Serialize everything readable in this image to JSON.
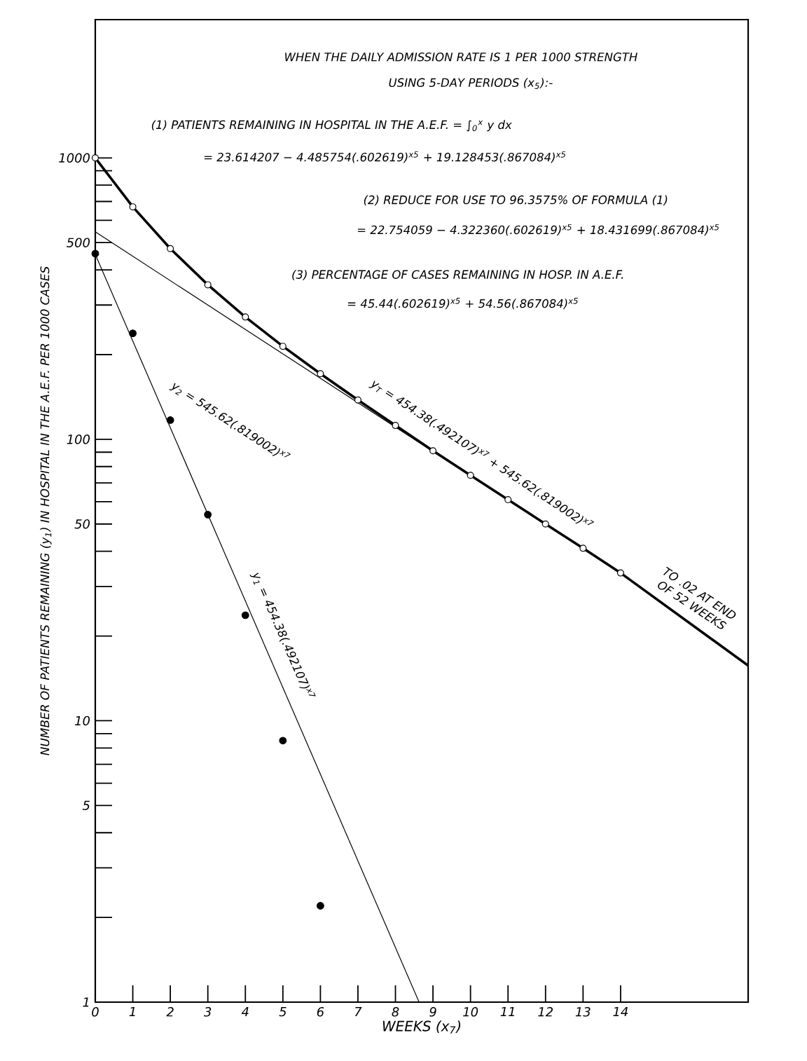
{
  "chart_data": {
    "type": "line",
    "xlabel": "WEEKS (x$_{7}$)",
    "ylabel": "NUMBER OF PATIENTS REMAINING (y$_{1}$) IN HOSPITAL IN THE A.E.F. PER 1000 CASES",
    "log": "y",
    "xlim": [
      0,
      17.4
    ],
    "ylim": [
      1,
      3100
    ],
    "xticks": [
      0,
      1,
      2,
      3,
      4,
      5,
      6,
      7,
      8,
      9,
      10,
      11,
      12,
      13,
      14
    ],
    "yticks": [
      1,
      {
        "value": 2,
        "label": null
      },
      {
        "value": 3,
        "label": null
      },
      {
        "value": 4,
        "label": null
      },
      5,
      {
        "value": 6,
        "label": null
      },
      {
        "value": 7,
        "label": null
      },
      {
        "value": 8,
        "label": null
      },
      {
        "value": 9,
        "label": null
      },
      10,
      {
        "value": 20,
        "label": null
      },
      {
        "value": 30,
        "label": null
      },
      {
        "value": 40,
        "label": null
      },
      50,
      {
        "value": 60,
        "label": null
      },
      {
        "value": 70,
        "label": null
      },
      {
        "value": 80,
        "label": null
      },
      {
        "value": 90,
        "label": null
      },
      100,
      {
        "value": 200,
        "label": null
      },
      {
        "value": 300,
        "label": null
      },
      {
        "value": 400,
        "label": null
      },
      500,
      {
        "value": 600,
        "label": null
      },
      {
        "value": 700,
        "label": null
      },
      {
        "value": 800,
        "label": null
      },
      {
        "value": 900,
        "label": null
      },
      1000
    ],
    "series": [
      {
        "color": "#000000",
        "x": [
          0,
          8.63
        ],
        "values": [
          454,
          1
        ]
      },
      {
        "color": "#000000",
        "x": [
          0,
          9
        ],
        "values": [
          546,
          90.5
        ]
      },
      {
        "color": "#000000",
        "x": [
          14,
          17.4
        ],
        "values": [
          33.5,
          15.7
        ]
      },
      {
        "color": "#000000",
        "marker": "circle",
        "x": [
          0,
          1,
          2,
          3,
          4,
          5,
          6,
          7,
          8,
          9,
          10,
          11,
          12,
          13,
          14
        ],
        "values": [
          1000,
          670,
          476,
          354,
          272,
          214,
          171,
          138,
          112,
          91,
          74.5,
          61,
          50,
          41,
          33.5
        ]
      },
      {
        "type": "scatter",
        "color": "#000000",
        "marker": "circle",
        "x": [
          0,
          1,
          2,
          3,
          4,
          5,
          6
        ],
        "values": [
          457,
          238,
          117,
          54,
          23.7,
          8.5,
          2.2
        ]
      }
    ],
    "annotations": [
      "WHEN THE DAILY ADMISSION RATE IS 1 PER 1000 STRENGTH",
      "USING 5-DAY PERIODS (x$_{5}$):-",
      "(1) PATIENTS REMAINING IN HOSPITAL IN THE A.E.F. = ∫$_{0}$$^{x}$ y dx",
      "= 23.614207 − 4.485754(.602619)$^{x5}$ + 19.128453(.867084)$^{x5}$",
      "(2) REDUCE FOR USE TO 96.3575% OF FORMULA (1)",
      "= 22.754059 − 4.322360(.602619)$^{x5}$ + 18.431699(.867084)$^{x5}$",
      "(3) PERCENTAGE OF CASES REMAINING IN HOSP. IN A.E.F.",
      "= 45.44(.602619)$^{x5}$ + 54.56(.867084)$^{x5}$",
      "y$_{T}$ = 454.38(.492107)$^{x7}$ + 545.62(.819002)$^{x7}$",
      "y$_{2}$ = 545.62(.819002)$^{x7}$",
      "y$_{1}$ = 454.38(.492107)$^{x7}$",
      "TO .02 AT END OF 52 WEEKS"
    ]
  }
}
